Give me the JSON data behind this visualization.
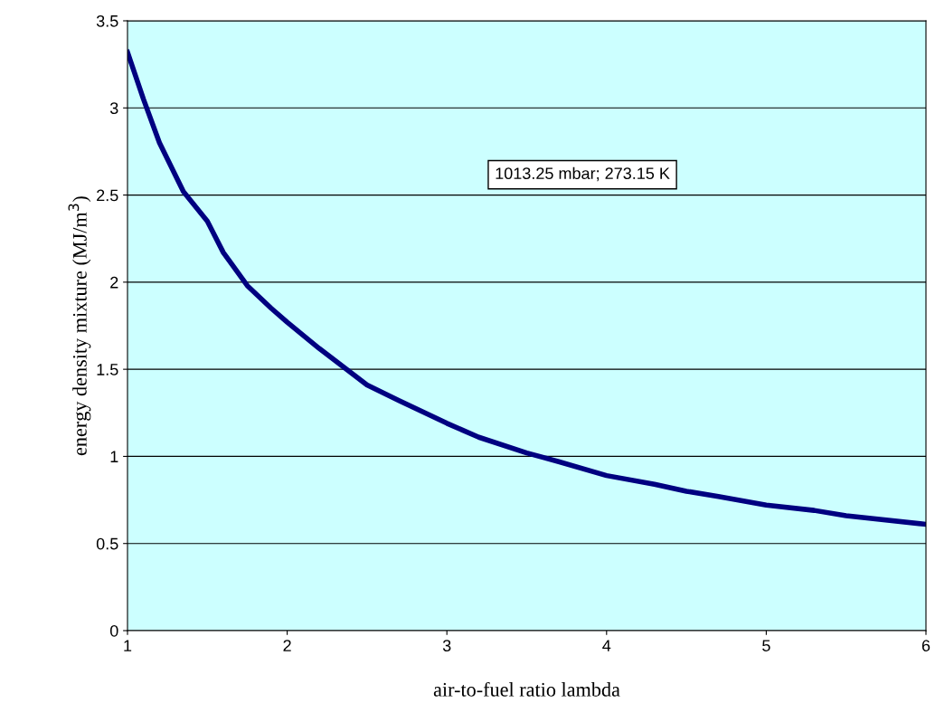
{
  "chart_data": {
    "type": "line",
    "xlabel": "air-to-fuel ratio lambda",
    "ylabel": "energy density mixture (MJ/m$^{3}$)",
    "annotations": [
      "1013.25 mbar; 273.15 K"
    ],
    "x": [
      1,
      1.1,
      1.2,
      1.35,
      1.5,
      1.6,
      1.75,
      1.9,
      2.0,
      2.2,
      2.4,
      2.5,
      2.7,
      3.0,
      3.2,
      3.5,
      3.7,
      4.0,
      4.3,
      4.5,
      4.7,
      5.0,
      5.3,
      5.5,
      6.0
    ],
    "series": [
      {
        "color": "#000080",
        "values": [
          3.32,
          3.05,
          2.8,
          2.52,
          2.35,
          2.17,
          1.98,
          1.85,
          1.77,
          1.62,
          1.48,
          1.41,
          1.32,
          1.19,
          1.11,
          1.02,
          0.97,
          0.89,
          0.84,
          0.8,
          0.77,
          0.72,
          0.69,
          0.66,
          0.61
        ]
      }
    ],
    "xlim": [
      1,
      6
    ],
    "xticks": [
      1,
      2,
      3,
      4,
      5,
      6
    ],
    "ylim": [
      0,
      3.5
    ],
    "yticks": [
      0,
      0.5,
      1,
      1.5,
      2,
      2.5,
      3,
      3.5
    ],
    "grid": "y",
    "marker": "none",
    "line_style": "solid"
  }
}
